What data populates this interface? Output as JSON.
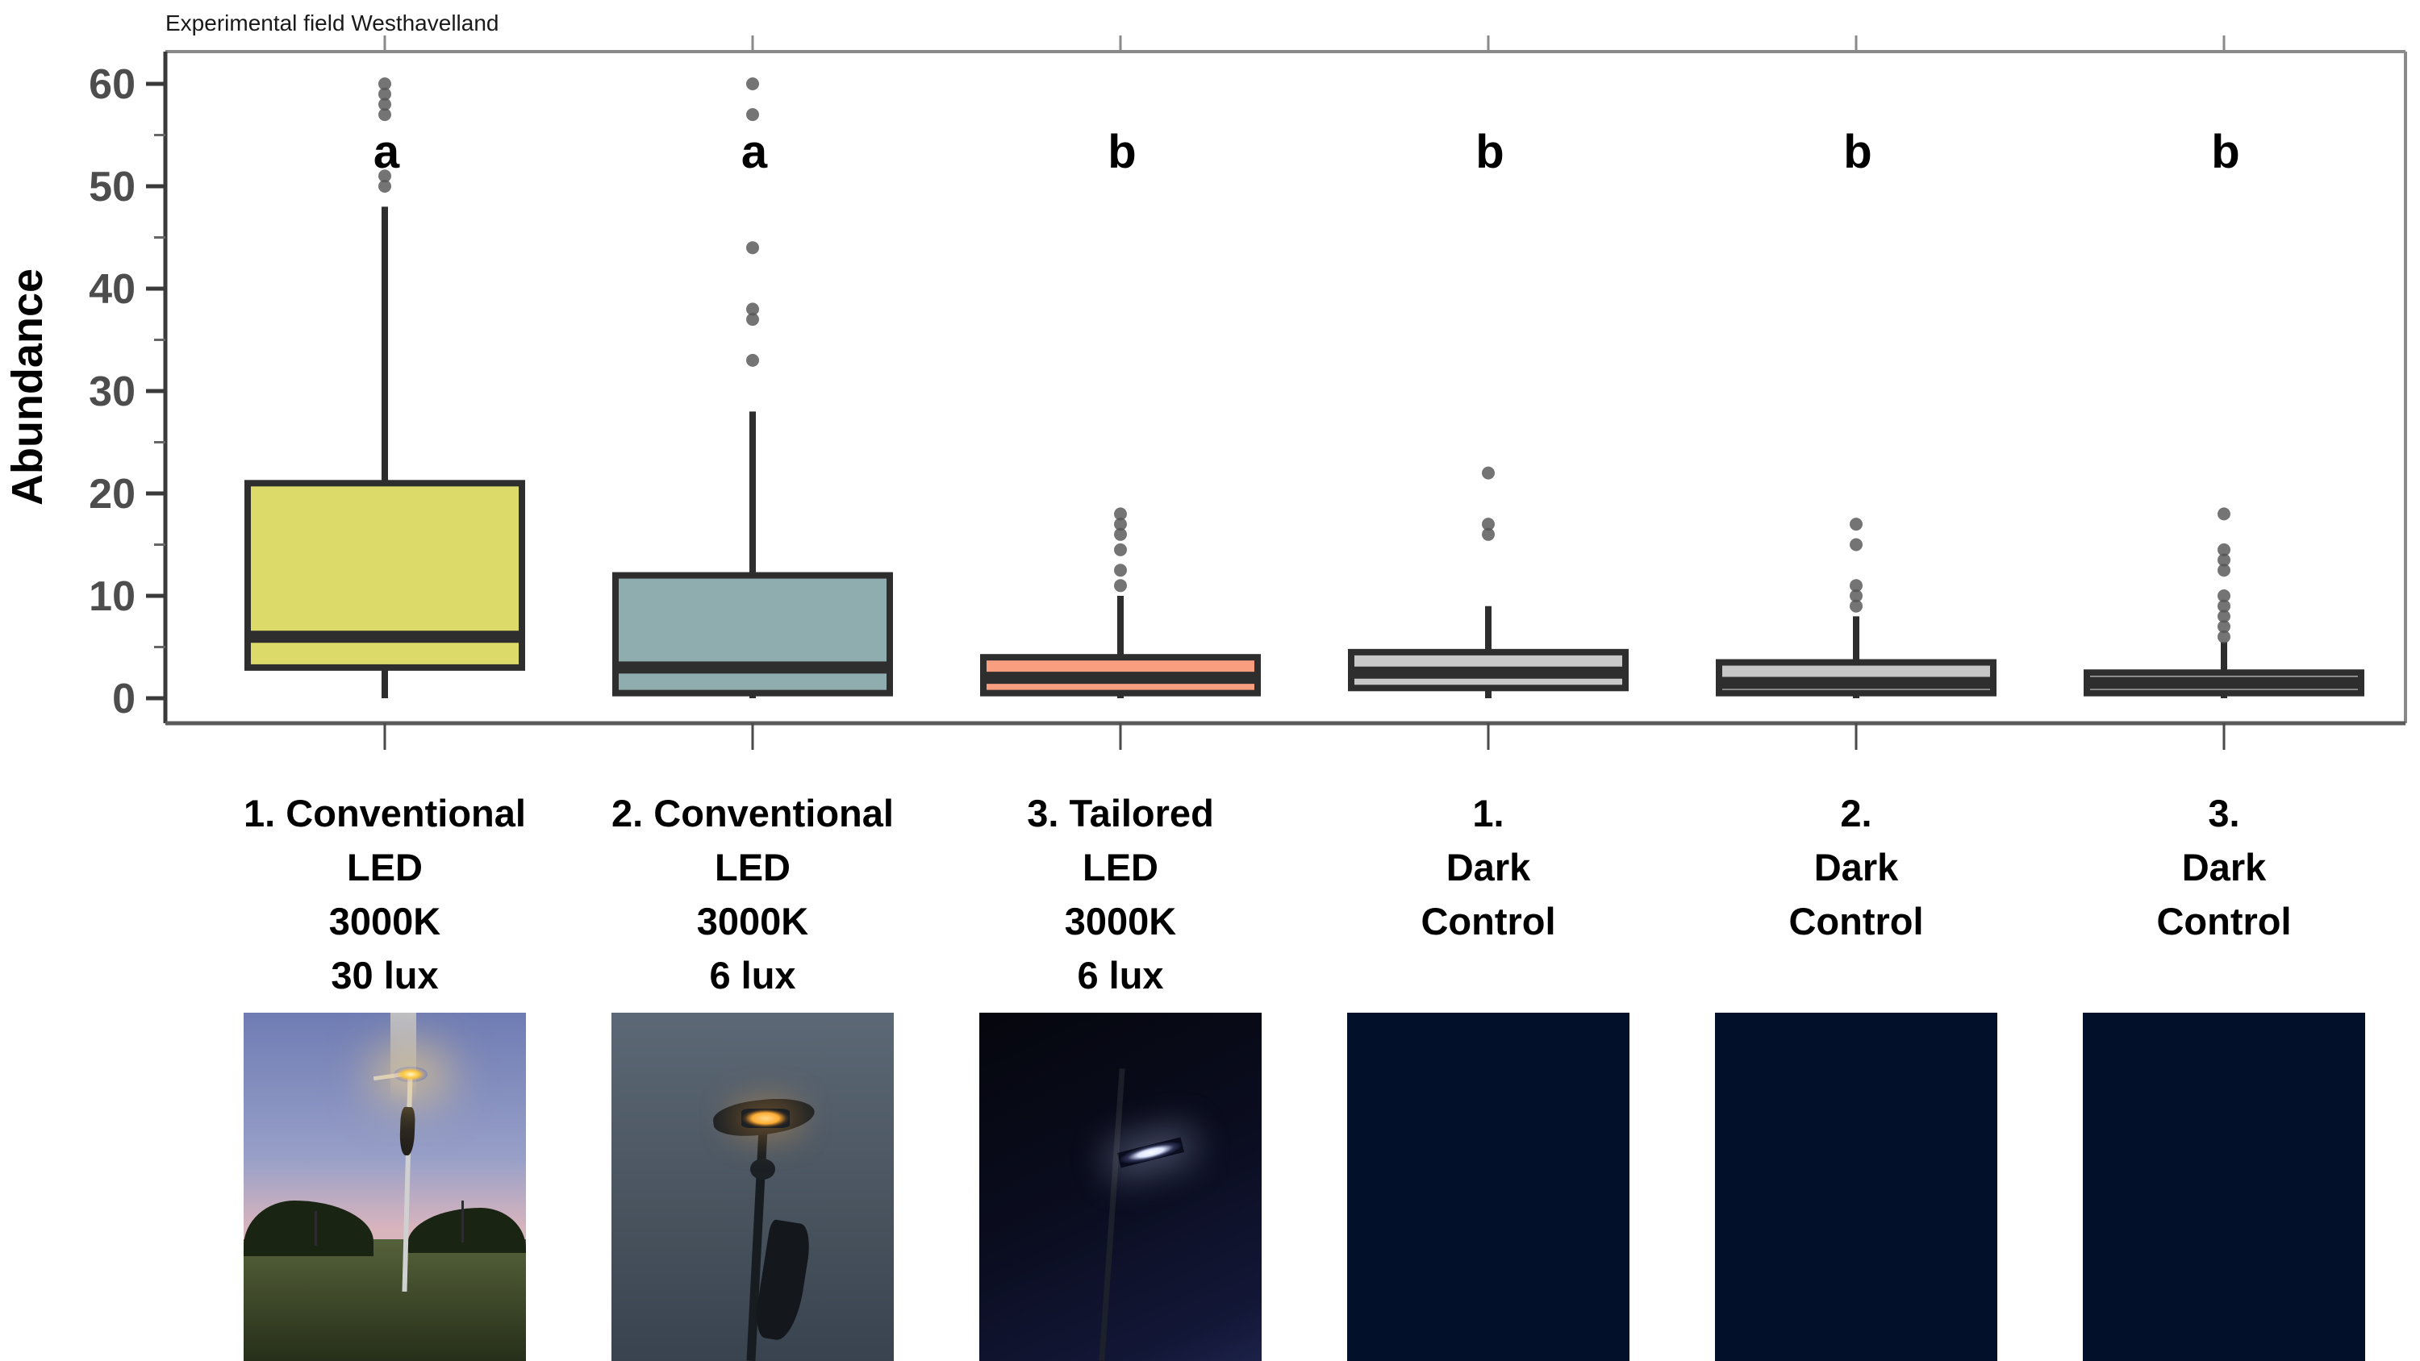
{
  "chart_data": {
    "type": "boxplot",
    "title": "Experimental field Westhavelland",
    "ylabel": "Abundance",
    "ylim": [
      -2.5,
      63
    ],
    "yticks": [
      0,
      10,
      20,
      30,
      40,
      50,
      60
    ],
    "yminor": [
      5,
      15,
      25,
      35,
      45,
      55
    ],
    "grid": false,
    "legend": "none",
    "groups": [
      {
        "label_lines": [
          "1. Conventional",
          "LED",
          "3000K",
          "30 lux"
        ],
        "letter": "a",
        "fill": "#dcdb69",
        "whisker_low": 0,
        "q1": 3,
        "median": 6,
        "q3": 21,
        "whisker_high": 48,
        "outliers": [
          50,
          51,
          57,
          58,
          59,
          60
        ]
      },
      {
        "label_lines": [
          "2. Conventional",
          "LED",
          "3000K",
          "6 lux"
        ],
        "letter": "a",
        "fill": "#8fadae",
        "whisker_low": 0,
        "q1": 0.5,
        "median": 3,
        "q3": 12,
        "whisker_high": 28,
        "outliers": [
          33,
          37,
          38,
          44,
          57,
          60
        ]
      },
      {
        "label_lines": [
          "3. Tailored",
          "LED",
          "3000K",
          "6 lux"
        ],
        "letter": "b",
        "fill": "#f99f80",
        "whisker_low": 0,
        "q1": 0.5,
        "median": 2,
        "q3": 4,
        "whisker_high": 10,
        "outliers": [
          11,
          12.5,
          14.5,
          16,
          17,
          18
        ]
      },
      {
        "label_lines": [
          "1.",
          "Dark",
          "Control"
        ],
        "letter": "b",
        "fill": "#c9c9c9",
        "whisker_low": 0,
        "q1": 1,
        "median": 2.5,
        "q3": 4.5,
        "whisker_high": 9,
        "outliers": [
          16,
          17,
          22
        ]
      },
      {
        "label_lines": [
          "2.",
          "Dark",
          "Control"
        ],
        "letter": "b",
        "fill": "#c6c6c6",
        "whisker_low": 0,
        "q1": 0.5,
        "median": 1.5,
        "q3": 3.5,
        "whisker_high": 8,
        "outliers": [
          9,
          10,
          11,
          15,
          17
        ]
      },
      {
        "label_lines": [
          "3.",
          "Dark",
          "Control"
        ],
        "letter": "b",
        "fill": "#c4c4c4",
        "whisker_low": 0,
        "q1": 0.5,
        "median": 1.5,
        "q3": 2.5,
        "whisker_high": 5.5,
        "outliers": [
          6,
          7,
          8,
          9,
          10,
          12.5,
          13.5,
          14.5,
          18
        ]
      }
    ]
  },
  "style": {
    "box_stroke": "#2e2e2e",
    "outlier_fill": "#555555",
    "tick_label_color": "#4d4d4d",
    "axis_color": "#3a3a3a",
    "panel_border_color": "#8a8a8a",
    "title_color": "#1a1a1a",
    "letter_color": "#000000"
  },
  "photos": [
    {
      "kind": "dusk-bright",
      "alt": "streetlight-at-dusk-photo",
      "palette": [
        "#6f7cb4",
        "#98a0c8",
        "#d8b4bd",
        "#55613a",
        "#262f19",
        "#1a2413",
        "#d0d0d0",
        "#ffc93e"
      ]
    },
    {
      "kind": "dusk-dim",
      "alt": "led-streetlamp-closeup-photo",
      "palette": [
        "#5d6876",
        "#49545f",
        "#39434f",
        "#1b2025",
        "#ffae35",
        "#171c21",
        "#14181c"
      ]
    },
    {
      "kind": "night",
      "alt": "tailored-led-night-photo",
      "palette": [
        "#05060d",
        "#0a0d1f",
        "#131737",
        "#1c2148",
        "#20232b",
        "#dfe6ff"
      ]
    },
    {
      "kind": "dark-control",
      "alt": "dark-control-image-1",
      "palette": [
        "#021029"
      ]
    },
    {
      "kind": "dark-control",
      "alt": "dark-control-image-2",
      "palette": [
        "#021029"
      ]
    },
    {
      "kind": "dark-control",
      "alt": "dark-control-image-3",
      "palette": [
        "#021029"
      ]
    }
  ]
}
